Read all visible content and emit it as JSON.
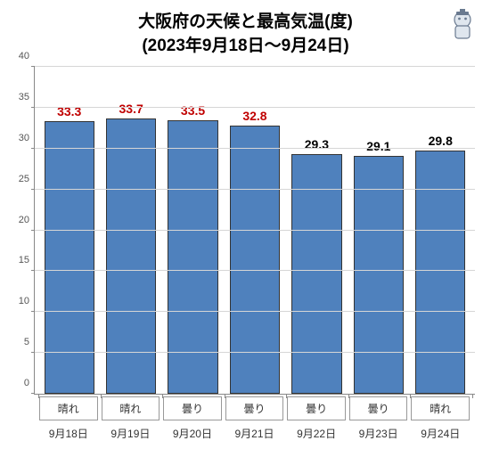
{
  "chart": {
    "type": "bar",
    "title_line1": "大阪府の天候と最高気温(度)",
    "title_line2": "(2023年9月18日～9月24日)",
    "title_fontsize": 19,
    "title_color": "#000000",
    "background_color": "#ffffff",
    "ylim": [
      0,
      40
    ],
    "ytick_step": 5,
    "yticks": [
      0,
      5,
      10,
      15,
      20,
      25,
      30,
      35,
      40
    ],
    "axis_color": "#888888",
    "grid_color": "#d6d6d6",
    "bar_fill": "#4f81bd",
    "bar_border": "#333333",
    "bar_width": 0.86,
    "label_fontsize": 14,
    "tick_fontsize": 11,
    "xlabel_fontsize": 12,
    "data": [
      {
        "date": "9月18日",
        "weather": "晴れ",
        "value": 33.3,
        "label_color": "#c00000"
      },
      {
        "date": "9月19日",
        "weather": "晴れ",
        "value": 33.7,
        "label_color": "#c00000"
      },
      {
        "date": "9月20日",
        "weather": "曇り",
        "value": 33.5,
        "label_color": "#c00000"
      },
      {
        "date": "9月21日",
        "weather": "曇り",
        "value": 32.8,
        "label_color": "#c00000"
      },
      {
        "date": "9月22日",
        "weather": "曇り",
        "value": 29.3,
        "label_color": "#000000"
      },
      {
        "date": "9月23日",
        "weather": "曇り",
        "value": 29.1,
        "label_color": "#000000"
      },
      {
        "date": "9月24日",
        "weather": "晴れ",
        "value": 29.8,
        "label_color": "#000000"
      }
    ]
  }
}
